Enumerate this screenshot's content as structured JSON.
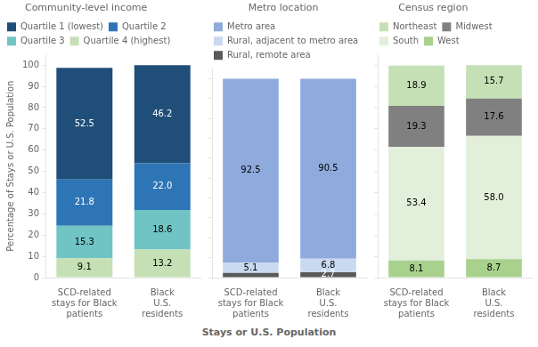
{
  "chart_data": [
    {
      "type": "bar",
      "stacked": true,
      "data_labels": true,
      "grid": false,
      "title": "Community-level income",
      "ylabel": "Percentage of Stays or U.S. Population",
      "categories": [
        "SCD-related\nstays for Black\npatients",
        "Black\nU.S.\nresidents"
      ],
      "series": [
        {
          "name": "Quartile 4 (highest)",
          "color": "#c5e0b4",
          "values": [
            9.1,
            13.2
          ]
        },
        {
          "name": "Quartile 3",
          "color": "#70c4c4",
          "values": [
            15.3,
            18.6
          ]
        },
        {
          "name": "Quartile 2",
          "color": "#2e75b6",
          "values": [
            21.8,
            22.0
          ],
          "value_labels": [
            "21.8",
            "22.0"
          ]
        },
        {
          "name": "Quartile 1 (lowest)",
          "color": "#1f4e79",
          "values": [
            52.5,
            46.2
          ]
        }
      ],
      "ylim": [
        0,
        105
      ],
      "yticks": [
        0,
        10,
        20,
        30,
        40,
        50,
        60,
        70,
        80,
        90,
        100
      ]
    },
    {
      "type": "bar",
      "stacked": true,
      "data_labels": true,
      "grid": false,
      "tick_labels": "x",
      "title": "Metro location",
      "xlabel": "Stays or U.S. Population",
      "categories": [
        "SCD-related\nstays for Black\npatients",
        "Black\nU.S.\nresidents"
      ],
      "series": [
        {
          "name": "Rural, remote area",
          "color": "#595959",
          "values": [
            2.4,
            2.7
          ],
          "value_labels": [
            null,
            "2.7"
          ]
        },
        {
          "name": "Rural, adjacent to metro area",
          "color": "#c9d9f0",
          "values": [
            5.1,
            6.8
          ]
        },
        {
          "name": "Metro area",
          "color": "#8faadc",
          "values": [
            92.5,
            90.5
          ]
        }
      ],
      "ylim": [
        0,
        105
      ],
      "yticks": [
        0,
        10,
        20,
        30,
        40,
        50,
        60,
        70,
        80,
        90,
        100
      ]
    },
    {
      "type": "bar",
      "stacked": true,
      "data_labels": true,
      "grid": false,
      "tick_labels": "x",
      "title": "Census region",
      "categories": [
        "SCD-related\nstays for Black\npatients",
        "Black\nU.S.\nresidents"
      ],
      "series": [
        {
          "name": "West",
          "color": "#a9d18e",
          "values": [
            8.1,
            8.7
          ]
        },
        {
          "name": "South",
          "color": "#e2efda",
          "values": [
            53.4,
            58.0
          ],
          "value_labels": [
            "53.4",
            "58.0"
          ]
        },
        {
          "name": "Midwest",
          "color": "#808080",
          "values": [
            19.3,
            17.6
          ]
        },
        {
          "name": "Northeast",
          "color": "#c5e0b4",
          "values": [
            18.9,
            15.7
          ]
        }
      ],
      "ylim": [
        0,
        105
      ],
      "yticks": [
        0,
        10,
        20,
        30,
        40,
        50,
        60,
        70,
        80,
        90,
        100
      ]
    }
  ]
}
